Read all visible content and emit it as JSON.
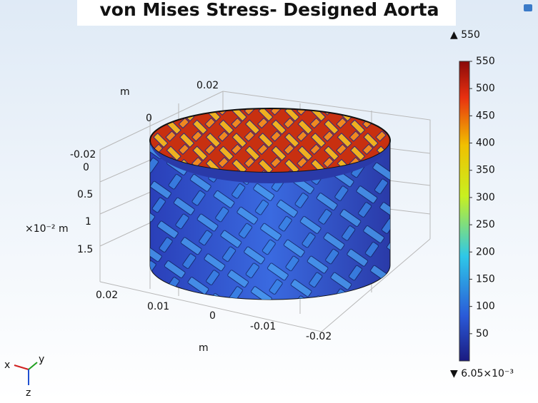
{
  "title": "von Mises Stress- Designed Aorta",
  "colorbar": {
    "max_label": "▲ 550",
    "min_label": "▼ 6.05×10⁻³",
    "ticks": [
      550,
      500,
      450,
      400,
      350,
      300,
      250,
      200,
      150,
      100,
      50
    ]
  },
  "axes": {
    "y_unit": "m",
    "y_ticks": [
      "0.02",
      "0",
      "-0.02"
    ],
    "z_unit": "×10⁻² m",
    "z_ticks": [
      "0",
      "0.5",
      "1",
      "1.5"
    ],
    "x_unit": "m",
    "x_ticks": [
      "0.02",
      "0.01",
      "0",
      "-0.01",
      "-0.02"
    ]
  },
  "triad": {
    "x": "x",
    "y": "y",
    "z": "z"
  }
}
